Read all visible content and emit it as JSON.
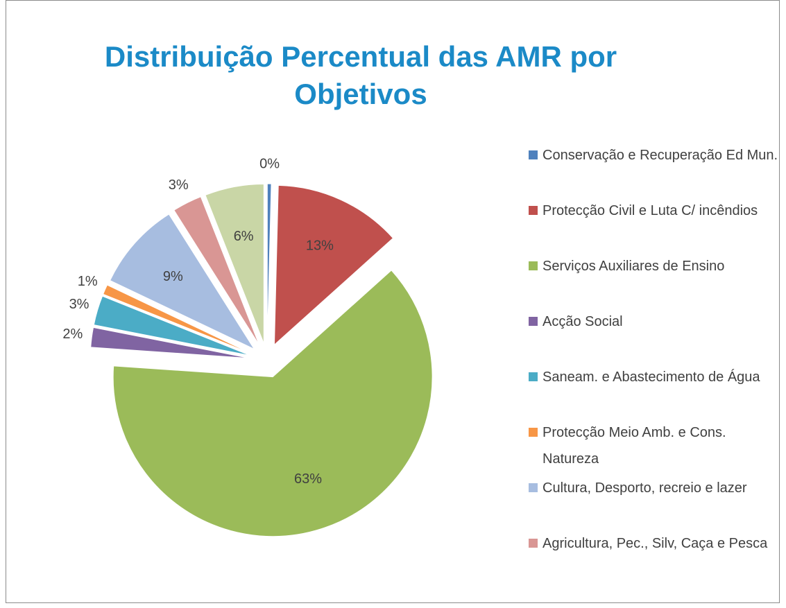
{
  "chart_data": {
    "type": "pie",
    "title": "Distribuição Percentual das AMR por Objetivos",
    "categories": [
      "Conservação e Recuperação Ed Mun.",
      "Protecção Civil e Luta C/ incêndios",
      "Serviços Auxiliares de Ensino",
      "Acção Social",
      "Saneam.  e Abastecimento de Água",
      "Protecção Meio Amb. e Cons. Natureza",
      "Cultura, Desporto, recreio e lazer",
      "Agricultura, Pec., Silv, Caça e Pesca",
      null
    ],
    "values": [
      0.4,
      13,
      63,
      2,
      3,
      1,
      9,
      3,
      6
    ],
    "value_labels": [
      "0%",
      "13%",
      "63%",
      "2%",
      "3%",
      "1%",
      "9%",
      "3%",
      "6%"
    ],
    "colors": [
      "#4f81bd",
      "#c0504d",
      "#9bbb59",
      "#8064a2",
      "#4bacc6",
      "#f79646",
      "#a7bde0",
      "#d99694",
      "#c9d6a6"
    ]
  }
}
